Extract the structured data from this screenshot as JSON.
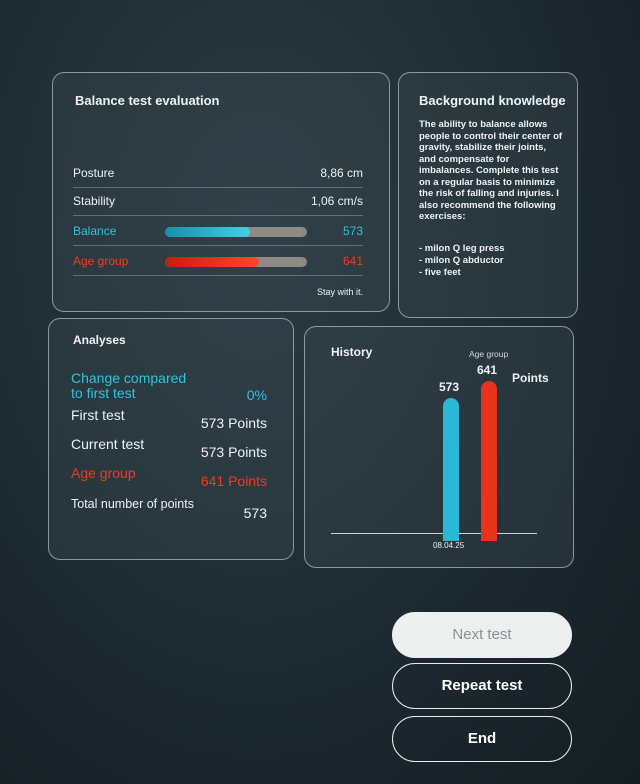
{
  "balance_panel": {
    "title": "Balance test evaluation",
    "rows": [
      {
        "label": "Posture",
        "value": "8,86 cm"
      },
      {
        "label": "Stability",
        "value": "1,06 cm/s"
      },
      {
        "label": "Balance",
        "value": "573"
      },
      {
        "label": "Age group",
        "value": "641"
      }
    ],
    "note": "Stay with it."
  },
  "knowledge_panel": {
    "title": "Background knowledge",
    "text": "The ability to balance allows people to control their center of gravity, stabilize their joints, and compensate for imbalances. Complete this test on a regular basis to minimize the risk of falling and injuries. I also recommend the following exercises:",
    "exercises": [
      "- milon Q leg press",
      "- milon Q abductor",
      "- five feet"
    ]
  },
  "analyses_panel": {
    "title": "Analyses",
    "rows": [
      {
        "label": "Change compared to first test",
        "value": "0%"
      },
      {
        "label": "First test",
        "value": "573 Points"
      },
      {
        "label": "Current test",
        "value": "573 Points"
      },
      {
        "label": "Age group",
        "value": "641 Points"
      },
      {
        "label": "Total number of points",
        "value": "573"
      }
    ]
  },
  "history_panel": {
    "title": "History",
    "date": "08.04.25",
    "unit": "Points",
    "bars": [
      {
        "value": 573,
        "color": "#2ab8d2"
      },
      {
        "label": "Age group",
        "value": 641,
        "color": "#e8321e"
      }
    ]
  },
  "buttons": [
    "Next test",
    "Repeat test",
    "End"
  ]
}
